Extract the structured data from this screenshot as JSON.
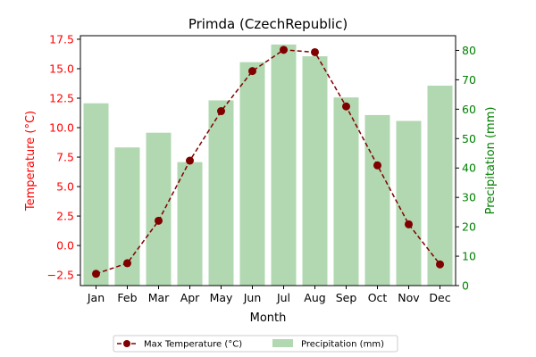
{
  "chart_data": {
    "type": "bar+line",
    "title": "Primda (CzechRepublic)",
    "xlabel": "Month",
    "categories": [
      "Jan",
      "Feb",
      "Mar",
      "Apr",
      "May",
      "Jun",
      "Jul",
      "Aug",
      "Sep",
      "Oct",
      "Nov",
      "Dec"
    ],
    "left_axis": {
      "label": "Temperature (°C)",
      "color": "#ff0000",
      "ylim": [
        -3.4,
        17.8
      ],
      "ticks": [
        -2.5,
        0.0,
        2.5,
        5.0,
        7.5,
        10.0,
        12.5,
        15.0,
        17.5
      ],
      "tick_labels": [
        "−2.5",
        "0.0",
        "2.5",
        "5.0",
        "7.5",
        "10.0",
        "12.5",
        "15.0",
        "17.5"
      ]
    },
    "right_axis": {
      "label": "Precipitation (mm)",
      "color": "#008000",
      "ylim": [
        0,
        85
      ],
      "ticks": [
        0,
        10,
        20,
        30,
        40,
        50,
        60,
        70,
        80
      ],
      "tick_labels": [
        "0",
        "10",
        "20",
        "30",
        "40",
        "50",
        "60",
        "70",
        "80"
      ]
    },
    "series": [
      {
        "name": "Max Temperature (°C)",
        "kind": "line",
        "axis": "left",
        "color": "#800000",
        "values": [
          -2.4,
          -1.5,
          2.1,
          7.2,
          11.4,
          14.8,
          16.6,
          16.4,
          11.8,
          6.8,
          1.8,
          -1.6
        ]
      },
      {
        "name": "Precipitation (mm)",
        "kind": "bar",
        "axis": "right",
        "color": "#b1d8b1",
        "values": [
          62,
          47,
          52,
          42,
          63,
          76,
          82,
          78,
          64,
          58,
          56,
          68
        ]
      }
    ],
    "legend_position": "bottom-center"
  }
}
